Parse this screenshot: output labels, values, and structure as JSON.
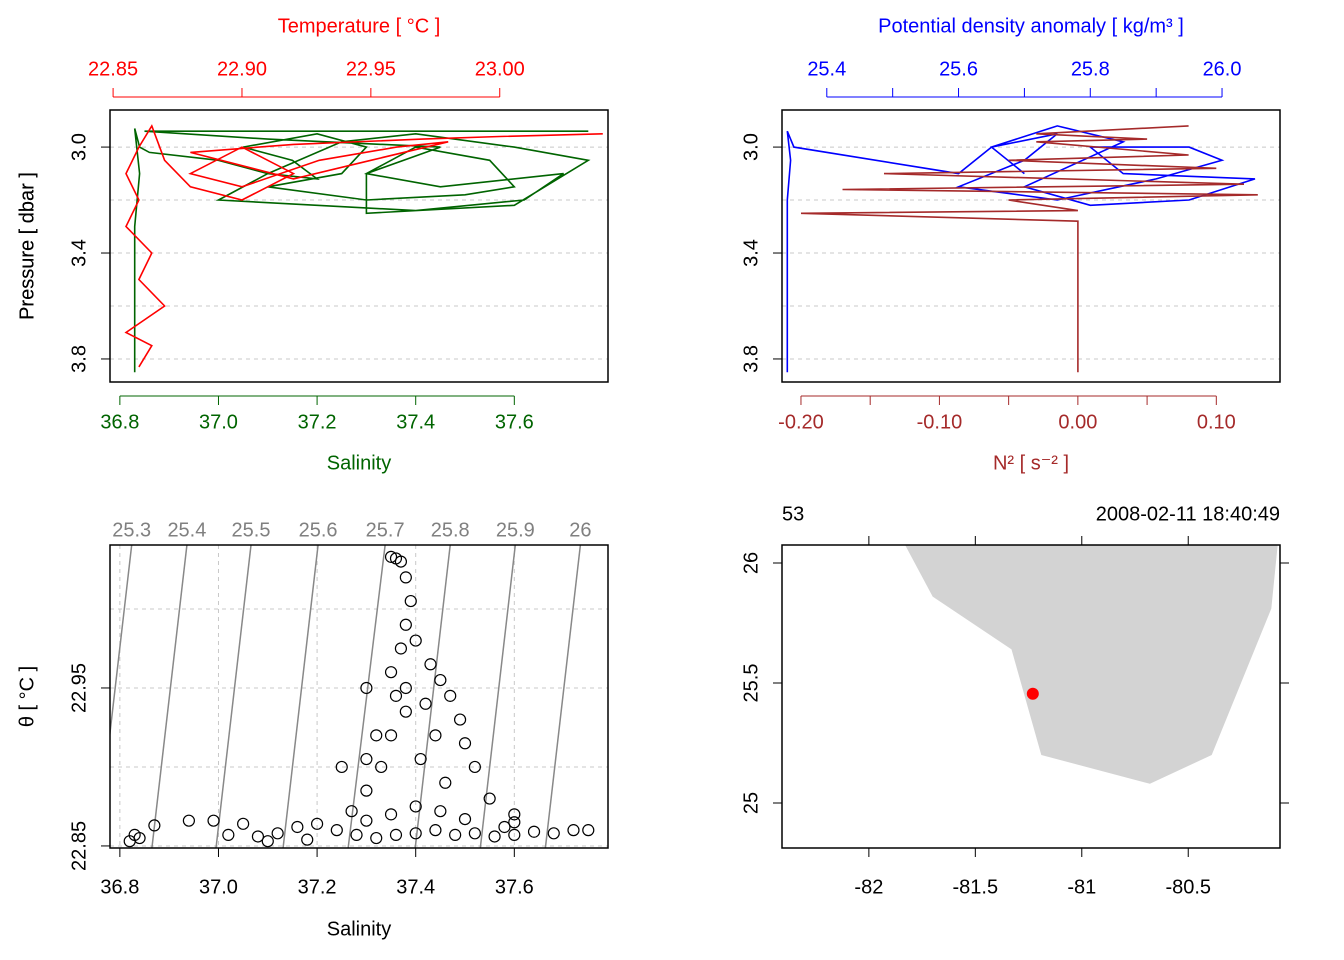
{
  "chart_data": [
    {
      "type": "profile",
      "xlabel": "Salinity",
      "x2label": "Temperature [ °C ]",
      "ylabel": "Pressure [ dbar ]",
      "xcolor": "#006400",
      "x2color": "#ff0000",
      "xlim": [
        36.78,
        37.79
      ],
      "x2lim": [
        22.8488,
        23.042
      ],
      "ylim": [
        3.887,
        2.86
      ],
      "xticks": [
        36.8,
        {
          "value": 37,
          "label": "37.0"
        },
        37.2,
        37.4,
        37.6
      ],
      "x2ticks": [
        22.85,
        {
          "value": 22.9,
          "label": "22.90"
        },
        22.95,
        {
          "value": 23,
          "label": "23.00"
        }
      ],
      "yticks": [
        {
          "value": 3,
          "label": "3.0"
        },
        3.4,
        3.8
      ],
      "ygrid": [
        3,
        3.2,
        3.4,
        3.6,
        3.8
      ],
      "grid": true,
      "series": [
        {
          "color": "#006400",
          "axis": "x",
          "values": [
            36.83,
            36.83,
            36.83,
            36.84,
            36.83,
            36.84,
            36.86,
            37.0,
            37.1,
            37.2,
            37.15,
            37.05,
            37.2,
            37.3,
            37.25,
            37.1,
            37.3,
            37.5,
            37.6,
            37.55,
            37.4,
            37.3,
            37.45,
            37.7,
            37.62,
            37.4,
            37.2,
            37.0,
            37.1,
            37.25,
            37.4,
            37.6,
            37.75,
            37.6,
            37.3,
            37.3,
            37.45,
            37.1,
            36.85,
            37.75
          ],
          "pressure": [
            3.85,
            3.6,
            3.3,
            3.1,
            2.93,
            3.0,
            3.02,
            3.05,
            3.1,
            3.12,
            3.05,
            3.0,
            2.95,
            3.0,
            3.1,
            3.15,
            3.2,
            3.18,
            3.15,
            3.05,
            3.0,
            3.1,
            3.15,
            3.1,
            3.2,
            3.24,
            3.22,
            3.2,
            3.1,
            2.98,
            2.95,
            3.0,
            3.05,
            3.22,
            3.25,
            3.1,
            3.0,
            2.97,
            2.94,
            2.94
          ]
        },
        {
          "color": "#ff0000",
          "axis": "x2",
          "values": [
            22.86,
            22.865,
            22.855,
            22.87,
            22.86,
            22.865,
            22.855,
            22.86,
            22.855,
            22.86,
            22.865,
            22.87,
            22.88,
            22.9,
            22.92,
            22.9,
            22.88,
            22.9,
            22.93,
            22.96,
            22.98,
            22.95,
            22.92,
            22.88,
            22.92,
            22.97,
            23.0,
            23.04
          ],
          "pressure": [
            3.83,
            3.75,
            3.7,
            3.6,
            3.5,
            3.4,
            3.3,
            3.2,
            3.1,
            3.0,
            2.92,
            3.05,
            3.15,
            3.2,
            3.1,
            3.0,
            3.1,
            3.15,
            3.05,
            3.0,
            2.98,
            3.05,
            3.12,
            3.02,
            2.99,
            2.97,
            2.96,
            2.95
          ]
        }
      ]
    },
    {
      "type": "profile",
      "xlabel": "N² [ s⁻² ]",
      "x2label": "Potential density anomaly [ kg/m³ ]",
      "ylabel": "Pressure [ dbar ]",
      "xcolor": "#a52a2a",
      "x2color": "#0000ff",
      "xlim": [
        -0.2137,
        0.146
      ],
      "x2lim": [
        25.332,
        26.088
      ],
      "ylim": [
        3.887,
        2.86
      ],
      "xticks": [
        {
          "value": -0.2,
          "label": "-0.20"
        },
        {
          "value": -0.1,
          "label": "-0.10"
        },
        {
          "value": 0,
          "label": "0.00"
        },
        {
          "value": 0.1,
          "label": "0.10"
        }
      ],
      "xminor": [
        -0.15,
        -0.05,
        0.05
      ],
      "x2ticks": [
        25.4,
        25.6,
        25.8,
        {
          "value": 26,
          "label": "26.0"
        }
      ],
      "x2minor": [
        25.5,
        25.7,
        25.9
      ],
      "yticks": [
        {
          "value": 3,
          "label": "3.0"
        },
        3.4,
        3.8
      ],
      "ygrid": [
        3,
        3.2,
        3.4,
        3.6,
        3.8
      ],
      "grid": true,
      "series": [
        {
          "color": "#0000ff",
          "axis": "x2",
          "values": [
            25.34,
            25.34,
            25.34,
            25.345,
            25.34,
            25.35,
            25.6,
            25.65,
            25.75,
            25.7,
            25.6,
            25.75,
            25.9,
            26.0,
            25.95,
            25.8,
            25.85,
            26.05,
            25.95,
            25.8,
            25.7,
            25.85,
            25.75,
            25.65,
            25.7
          ],
          "pressure": [
            3.85,
            3.5,
            3.2,
            3.05,
            2.94,
            3.0,
            3.1,
            3.0,
            2.95,
            3.05,
            3.15,
            3.2,
            3.12,
            3.05,
            3.0,
            3.0,
            3.1,
            3.12,
            3.2,
            3.22,
            3.15,
            2.98,
            2.92,
            3.0,
            3.1
          ]
        },
        {
          "color": "#a52a2a",
          "axis": "x",
          "values": [
            0,
            0,
            0,
            0,
            -0.2,
            0,
            -0.05,
            0.13,
            -0.17,
            0.12,
            -0.14,
            0.1,
            -0.05,
            0.08,
            -0.03,
            0.05,
            -0.03,
            0.08
          ],
          "pressure": [
            3.85,
            3.6,
            3.4,
            3.28,
            3.25,
            3.24,
            3.2,
            3.18,
            3.16,
            3.14,
            3.1,
            3.08,
            3.05,
            3.03,
            2.98,
            2.97,
            2.95,
            2.92
          ]
        }
      ]
    },
    {
      "type": "scatter",
      "xlabel": "Salinity",
      "ylabel": "θ [ °C ]",
      "xlim": [
        36.78,
        37.79
      ],
      "ylim": [
        22.8487,
        23.0405
      ],
      "xticks": [
        36.8,
        {
          "value": 37,
          "label": "37.0"
        },
        37.2,
        37.4,
        37.6
      ],
      "yticks": [
        22.85,
        22.95
      ],
      "ygrid": [
        22.85,
        22.9,
        22.95,
        23
      ],
      "grid": true,
      "isopycnals": [
        {
          "value": 25.3,
          "s_bottom": 36.753,
          "s_top": 36.824
        },
        {
          "value": 25.4,
          "s_bottom": 36.865,
          "s_top": 36.936
        },
        {
          "value": 25.5,
          "s_bottom": 36.995,
          "s_top": 37.066
        },
        {
          "value": 25.6,
          "s_bottom": 37.131,
          "s_top": 37.202
        },
        {
          "value": 25.7,
          "s_bottom": 37.263,
          "s_top": 37.338
        },
        {
          "value": 25.8,
          "s_bottom": 37.399,
          "s_top": 37.47
        },
        {
          "value": 25.9,
          "s_bottom": 37.531,
          "s_top": 37.602
        },
        {
          "value": 26,
          "s_bottom": 37.663,
          "s_top": 37.734
        }
      ],
      "x": [
        36.82,
        36.83,
        36.84,
        36.87,
        36.94,
        36.99,
        37.05,
        37.02,
        37.08,
        37.12,
        37.16,
        37.2,
        37.24,
        37.28,
        37.32,
        37.18,
        37.1,
        37.36,
        37.4,
        37.44,
        37.48,
        37.52,
        37.56,
        37.6,
        37.64,
        37.68,
        37.72,
        37.75,
        37.58,
        37.5,
        37.45,
        37.4,
        37.35,
        37.3,
        37.27,
        37.3,
        37.33,
        37.35,
        37.38,
        37.36,
        37.35,
        37.37,
        37.38,
        37.39,
        37.38,
        37.36,
        37.35,
        37.37,
        37.4,
        37.43,
        37.45,
        37.47,
        37.49,
        37.5,
        37.52,
        37.55,
        37.6,
        37.42,
        37.44,
        37.41,
        37.3,
        37.32,
        37.25,
        37.3,
        37.38,
        37.46,
        37.6
      ],
      "values": [
        22.853,
        22.857,
        22.855,
        22.863,
        22.866,
        22.866,
        22.864,
        22.857,
        22.856,
        22.858,
        22.862,
        22.864,
        22.86,
        22.857,
        22.855,
        22.854,
        22.853,
        22.857,
        22.858,
        22.86,
        22.857,
        22.858,
        22.856,
        22.857,
        22.859,
        22.858,
        22.86,
        22.86,
        22.862,
        22.867,
        22.872,
        22.875,
        22.87,
        22.866,
        22.872,
        22.885,
        22.9,
        22.92,
        22.935,
        22.945,
        22.96,
        22.975,
        22.99,
        23.005,
        23.02,
        23.032,
        23.033,
        23.03,
        22.98,
        22.965,
        22.955,
        22.945,
        22.93,
        22.915,
        22.9,
        22.88,
        22.865,
        22.94,
        22.92,
        22.905,
        22.905,
        22.92,
        22.9,
        22.95,
        22.95,
        22.89,
        22.87
      ]
    },
    {
      "type": "map",
      "top_left": "53",
      "top_right": "2008-02-11 18:40:49",
      "xlim": [
        -82.408,
        -80.069
      ],
      "ylim": [
        24.8125,
        26.075
      ],
      "xticks": [
        -82,
        -81.5,
        -81,
        -80.5
      ],
      "yticks": [
        25,
        25.5,
        26
      ],
      "land": {
        "color": "#d3d3d3",
        "lon": [
          -81.83,
          -81.7,
          -81.33,
          -81.19,
          -80.68,
          -80.39,
          -80.11,
          -80.08
        ],
        "lat": [
          26.075,
          25.86,
          25.64,
          25.2,
          25.08,
          25.2,
          25.81,
          26.075
        ]
      },
      "station": {
        "color": "#ff0000",
        "lon": -81.23,
        "lat": 25.455
      }
    }
  ]
}
